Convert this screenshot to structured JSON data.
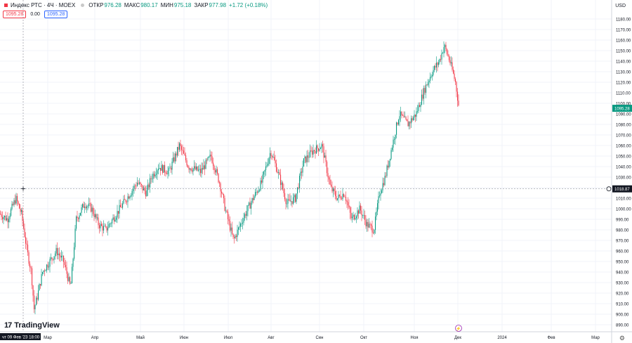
{
  "header": {
    "symbol": "Индекс РТС · 4Ч · MOEX",
    "open_label": "ОТКР",
    "open_value": "976.28",
    "high_label": "МАКС",
    "high_value": "980.17",
    "low_label": "МИН",
    "low_value": "975.18",
    "close_label": "ЗАКР",
    "close_value": "977.98",
    "change": "+1.72 (+0.18%)",
    "sell_price": "1095.28",
    "spread": "0.00",
    "buy_price": "1095.28"
  },
  "currency": "USD",
  "branding": "TradingView",
  "crosshair": {
    "price_label": "1018.87",
    "time_label": "чт 09 Фев '23  18:00"
  },
  "last_price_label": "1095.28",
  "colors": {
    "up": "#089981",
    "down": "#f23645",
    "grid": "#f0f3fa",
    "last": "#089981"
  },
  "chart_data": {
    "type": "candlestick",
    "ylim": [
      885,
      1182
    ],
    "yticks": [
      890,
      900,
      910,
      920,
      930,
      940,
      950,
      960,
      970,
      980,
      990,
      1000,
      1010,
      1020,
      1030,
      1040,
      1050,
      1060,
      1070,
      1080,
      1090,
      1100,
      1110,
      1120,
      1130,
      1140,
      1150,
      1160,
      1170,
      1180
    ],
    "xticks": [
      "Мар",
      "Апр",
      "Май",
      "Июн",
      "Июл",
      "Авг",
      "Сен",
      "Окт",
      "Ноя",
      "Дек",
      "2024",
      "Фев",
      "Мар"
    ],
    "xlabel": "",
    "ylabel": "",
    "grid": true,
    "anchors": [
      [
        0,
        995
      ],
      [
        10,
        990
      ],
      [
        22,
        1010
      ],
      [
        30,
        995
      ],
      [
        38,
        960
      ],
      [
        44,
        940
      ],
      [
        48,
        905
      ],
      [
        52,
        915
      ],
      [
        60,
        940
      ],
      [
        70,
        950
      ],
      [
        80,
        960
      ],
      [
        90,
        950
      ],
      [
        100,
        925
      ],
      [
        108,
        990
      ],
      [
        120,
        1005
      ],
      [
        130,
        1000
      ],
      [
        140,
        985
      ],
      [
        150,
        980
      ],
      [
        165,
        995
      ],
      [
        180,
        1010
      ],
      [
        195,
        1025
      ],
      [
        208,
        1015
      ],
      [
        215,
        1030
      ],
      [
        225,
        1040
      ],
      [
        240,
        1035
      ],
      [
        255,
        1060
      ],
      [
        268,
        1040
      ],
      [
        285,
        1035
      ],
      [
        300,
        1050
      ],
      [
        312,
        1025
      ],
      [
        320,
        1000
      ],
      [
        332,
        970
      ],
      [
        345,
        990
      ],
      [
        360,
        1010
      ],
      [
        372,
        1025
      ],
      [
        385,
        1055
      ],
      [
        395,
        1035
      ],
      [
        408,
        1005
      ],
      [
        420,
        1010
      ],
      [
        432,
        1045
      ],
      [
        445,
        1055
      ],
      [
        458,
        1060
      ],
      [
        470,
        1020
      ],
      [
        480,
        1010
      ],
      [
        490,
        1015
      ],
      [
        500,
        990
      ],
      [
        512,
        1000
      ],
      [
        522,
        985
      ],
      [
        532,
        980
      ],
      [
        540,
        1015
      ],
      [
        548,
        1030
      ],
      [
        558,
        1060
      ],
      [
        568,
        1090
      ],
      [
        580,
        1080
      ],
      [
        592,
        1090
      ],
      [
        605,
        1115
      ],
      [
        615,
        1130
      ],
      [
        625,
        1140
      ],
      [
        632,
        1155
      ],
      [
        640,
        1140
      ],
      [
        648,
        1120
      ],
      [
        653,
        1096
      ]
    ],
    "last": 1095.28
  }
}
